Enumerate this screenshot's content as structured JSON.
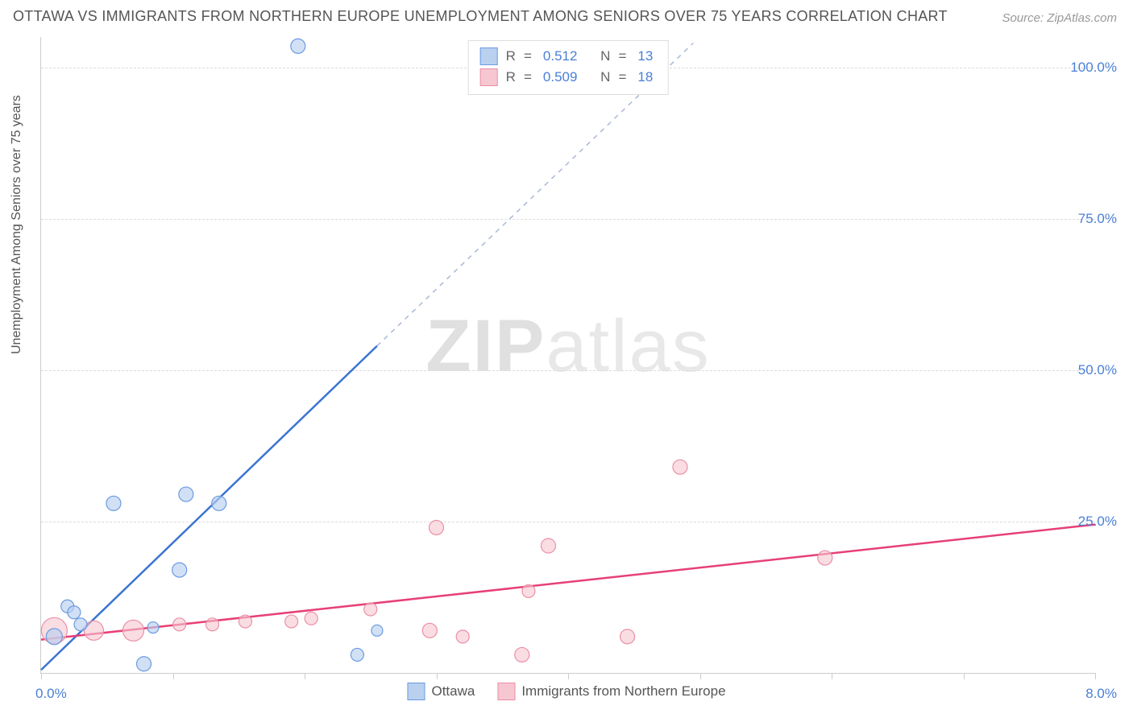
{
  "title": "OTTAWA VS IMMIGRANTS FROM NORTHERN EUROPE UNEMPLOYMENT AMONG SENIORS OVER 75 YEARS CORRELATION CHART",
  "source_label": "Source: ZipAtlas.com",
  "y_axis_title": "Unemployment Among Seniors over 75 years",
  "watermark": {
    "bold": "ZIP",
    "light": "atlas"
  },
  "chart": {
    "type": "scatter",
    "xlim": [
      0.0,
      8.0
    ],
    "ylim": [
      0.0,
      105.0
    ],
    "x_ticks": [
      0.0,
      1.0,
      2.0,
      3.0,
      4.0,
      5.0,
      6.0,
      7.0,
      8.0
    ],
    "x_tick_labels": {
      "min": "0.0%",
      "max": "8.0%"
    },
    "y_gridlines": [
      25.0,
      50.0,
      75.0,
      100.0
    ],
    "y_tick_labels": [
      "25.0%",
      "50.0%",
      "75.0%",
      "100.0%"
    ],
    "background_color": "#ffffff",
    "grid_color": "#dddddd",
    "axis_color": "#cccccc",
    "tick_label_color": "#4a7fd6",
    "tick_label_fontsize": 17,
    "title_color": "#555555",
    "title_fontsize": 18
  },
  "series": {
    "blue": {
      "label": "Ottawa",
      "fill": "#b9d0ef",
      "stroke": "#6a9be0",
      "line_color": "#3b74d2",
      "dash_color": "#aab8d8",
      "opacity": 0.65,
      "R": "0.512",
      "N": "13",
      "trend": {
        "x1": 0.0,
        "y1": 0.5,
        "x2": 2.55,
        "y2": 54.0,
        "dash_x2": 4.95,
        "dash_y2": 104.0
      },
      "points": [
        {
          "x": 0.1,
          "y": 6.0,
          "r": 10
        },
        {
          "x": 0.2,
          "y": 11.0,
          "r": 8
        },
        {
          "x": 0.25,
          "y": 10.0,
          "r": 8
        },
        {
          "x": 0.3,
          "y": 8.0,
          "r": 8
        },
        {
          "x": 0.55,
          "y": 28.0,
          "r": 9
        },
        {
          "x": 0.78,
          "y": 1.5,
          "r": 9
        },
        {
          "x": 0.85,
          "y": 7.5,
          "r": 7
        },
        {
          "x": 1.05,
          "y": 17.0,
          "r": 9
        },
        {
          "x": 1.1,
          "y": 29.5,
          "r": 9
        },
        {
          "x": 1.35,
          "y": 28.0,
          "r": 9
        },
        {
          "x": 1.95,
          "y": 103.5,
          "r": 9
        },
        {
          "x": 2.4,
          "y": 3.0,
          "r": 8
        },
        {
          "x": 2.55,
          "y": 7.0,
          "r": 7
        }
      ]
    },
    "pink": {
      "label": "Immigrants from Northern Europe",
      "fill": "#f6c6d1",
      "stroke": "#ea8fa6",
      "line_color": "#e74076",
      "opacity": 0.6,
      "R": "0.509",
      "N": "18",
      "trend": {
        "x1": 0.0,
        "y1": 5.5,
        "x2": 8.0,
        "y2": 24.5
      },
      "points": [
        {
          "x": 0.1,
          "y": 7.0,
          "r": 16
        },
        {
          "x": 0.4,
          "y": 7.0,
          "r": 12
        },
        {
          "x": 0.7,
          "y": 7.0,
          "r": 13
        },
        {
          "x": 1.05,
          "y": 8.0,
          "r": 8
        },
        {
          "x": 1.3,
          "y": 8.0,
          "r": 8
        },
        {
          "x": 1.55,
          "y": 8.5,
          "r": 8
        },
        {
          "x": 1.9,
          "y": 8.5,
          "r": 8
        },
        {
          "x": 2.05,
          "y": 9.0,
          "r": 8
        },
        {
          "x": 2.5,
          "y": 10.5,
          "r": 8
        },
        {
          "x": 2.95,
          "y": 7.0,
          "r": 9
        },
        {
          "x": 3.0,
          "y": 24.0,
          "r": 9
        },
        {
          "x": 3.2,
          "y": 6.0,
          "r": 8
        },
        {
          "x": 3.65,
          "y": 3.0,
          "r": 9
        },
        {
          "x": 3.7,
          "y": 13.5,
          "r": 8
        },
        {
          "x": 3.85,
          "y": 21.0,
          "r": 9
        },
        {
          "x": 4.45,
          "y": 6.0,
          "r": 9
        },
        {
          "x": 4.85,
          "y": 34.0,
          "r": 9
        },
        {
          "x": 5.95,
          "y": 19.0,
          "r": 9
        }
      ]
    }
  },
  "legend_top": {
    "r_label": "R",
    "n_label": "N",
    "eq": "="
  },
  "legend_bottom": {
    "items": [
      "blue",
      "pink"
    ]
  }
}
